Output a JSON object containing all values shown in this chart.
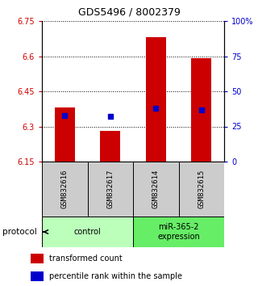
{
  "title": "GDS5496 / 8002379",
  "samples": [
    "GSM832616",
    "GSM832617",
    "GSM832614",
    "GSM832615"
  ],
  "transformed_counts": [
    6.38,
    6.28,
    6.68,
    6.59
  ],
  "percentile_ranks_pct": [
    33,
    32,
    38,
    37
  ],
  "bar_base": 6.15,
  "ylim_left": [
    6.15,
    6.75
  ],
  "ylim_right": [
    0,
    100
  ],
  "yticks_left": [
    6.15,
    6.3,
    6.45,
    6.6,
    6.75
  ],
  "ytick_labels_left": [
    "6.15",
    "6.3",
    "6.45",
    "6.6",
    "6.75"
  ],
  "yticks_right": [
    0,
    25,
    50,
    75,
    100
  ],
  "ytick_labels_right": [
    "0",
    "25",
    "50",
    "75",
    "100%"
  ],
  "bar_color": "#cc0000",
  "dot_color": "#0000cc",
  "group_labels": [
    "control",
    "miR-365-2\nexpression"
  ],
  "group_colors": [
    "#bbffbb",
    "#66ee66"
  ],
  "group_ranges": [
    [
      0,
      1
    ],
    [
      2,
      3
    ]
  ],
  "legend_bar_label": "transformed count",
  "legend_dot_label": "percentile rank within the sample",
  "protocol_label": "protocol",
  "tick_color_left": "#cc0000",
  "tick_color_right": "#0000cc",
  "sample_box_color": "#cccccc",
  "title_fontsize": 9,
  "tick_fontsize": 7,
  "label_fontsize": 7,
  "legend_fontsize": 7
}
